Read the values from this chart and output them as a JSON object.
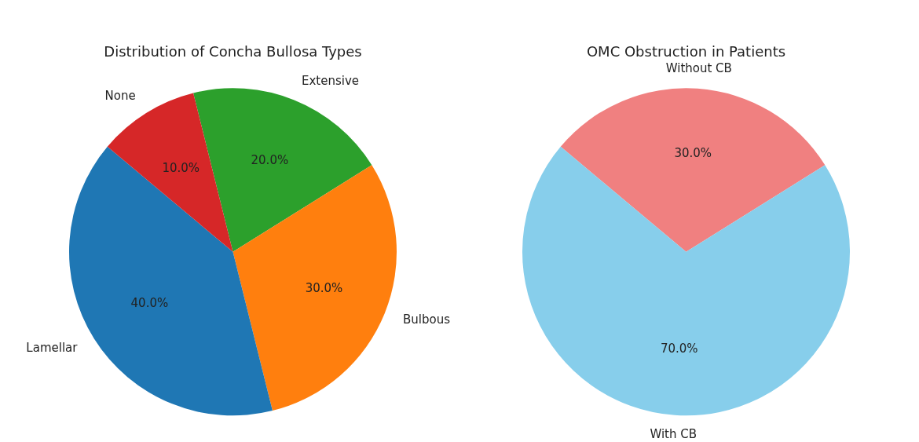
{
  "chart_data": [
    {
      "type": "pie",
      "title": "Distribution of Concha Bullosa Types",
      "categories": [
        "Extensive",
        "Bulbous",
        "Lamellar",
        "None"
      ],
      "values": [
        20,
        30,
        40,
        10
      ],
      "colors": [
        "#2ca02c",
        "#ff7f0e",
        "#1f77b4",
        "#d62728"
      ],
      "value_labels": [
        "20.0%",
        "30.0%",
        "40.0%",
        "10.0%"
      ],
      "legend": false
    },
    {
      "type": "pie",
      "title": "OMC Obstruction in Patients",
      "categories": [
        "Without CB",
        "With CB"
      ],
      "values": [
        30,
        70
      ],
      "colors": [
        "#f08080",
        "#87ceeb"
      ],
      "value_labels": [
        "30.0%",
        "70.0%"
      ],
      "legend": false
    }
  ]
}
